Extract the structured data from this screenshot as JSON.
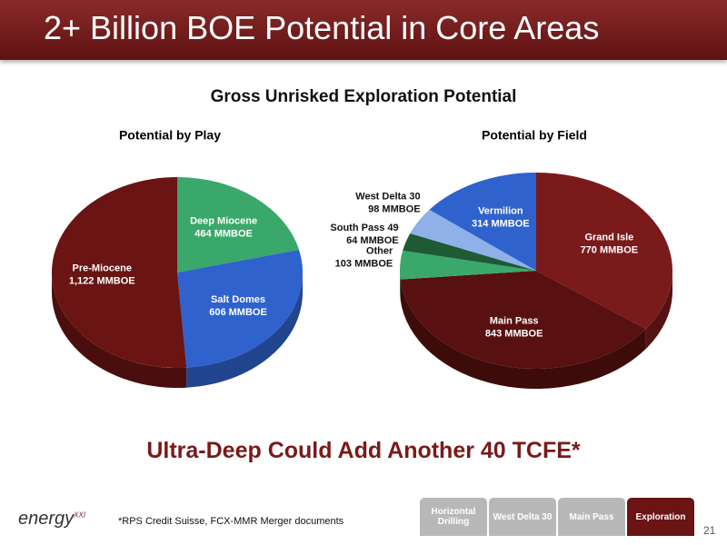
{
  "slide": {
    "title": "2+ Billion BOE Potential in Core Areas",
    "heading": "Gross Unrisked Exploration Potential",
    "callout": "Ultra-Deep Could Add Another 40 TCFE*",
    "footnote": "*RPS Credit Suisse, FCX-MMR Merger documents",
    "page_number": 21,
    "logo": "energy",
    "logo_mark": "XXI",
    "tabs": [
      "Horizontal Drilling",
      "West Delta 30",
      "Main Pass",
      "Exploration"
    ]
  },
  "chart_data": [
    {
      "type": "pie",
      "title": "Potential by Play",
      "categories": [
        "Deep Miocene",
        "Salt Domes",
        "Pre-Miocene"
      ],
      "values": [
        464,
        606,
        1122
      ],
      "value_labels": [
        "464 MMBOE",
        "606 MMBOE",
        "1,122 MMBOE"
      ],
      "colors": [
        "#3aa86a",
        "#2f62cc",
        "#6a1414"
      ]
    },
    {
      "type": "pie",
      "title": "Potential by Field",
      "categories": [
        "Grand Isle",
        "Main Pass",
        "Other",
        "South Pass 49",
        "West Delta 30",
        "Vermilion"
      ],
      "values": [
        770,
        843,
        103,
        64,
        98,
        314
      ],
      "value_labels": [
        "770 MMBOE",
        "843 MMBOE",
        "103 MMBOE",
        "64 MMBOE",
        "98 MMBOE",
        "314 MMBOE"
      ],
      "colors": [
        "#7a1a1a",
        "#581010",
        "#3aa86a",
        "#1e5a35",
        "#8fb0e8",
        "#2f62cc"
      ]
    }
  ]
}
